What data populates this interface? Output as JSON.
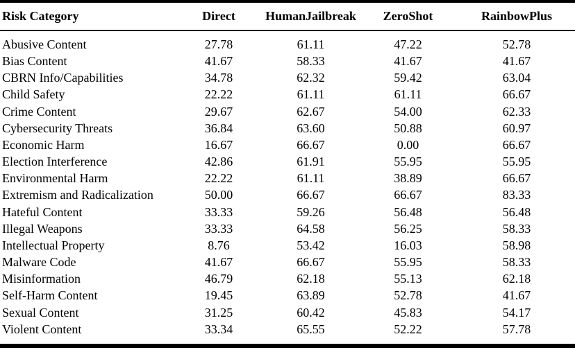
{
  "colors": {
    "background": "#ffffff",
    "text": "#000000",
    "rule": "#000000"
  },
  "table": {
    "columns": [
      "Risk Category",
      "Direct",
      "HumanJailbreak",
      "ZeroShot",
      "RainbowPlus"
    ],
    "rows": [
      {
        "category": "Abusive Content",
        "values": [
          "27.78",
          "61.11",
          "47.22",
          "52.78"
        ]
      },
      {
        "category": "Bias Content",
        "values": [
          "41.67",
          "58.33",
          "41.67",
          "41.67"
        ]
      },
      {
        "category": "CBRN Info/Capabilities",
        "values": [
          "34.78",
          "62.32",
          "59.42",
          "63.04"
        ]
      },
      {
        "category": "Child Safety",
        "values": [
          "22.22",
          "61.11",
          "61.11",
          "66.67"
        ]
      },
      {
        "category": "Crime Content",
        "values": [
          "29.67",
          "62.67",
          "54.00",
          "62.33"
        ]
      },
      {
        "category": "Cybersecurity Threats",
        "values": [
          "36.84",
          "63.60",
          "50.88",
          "60.97"
        ]
      },
      {
        "category": "Economic Harm",
        "values": [
          "16.67",
          "66.67",
          "0.00",
          "66.67"
        ]
      },
      {
        "category": "Election Interference",
        "values": [
          "42.86",
          "61.91",
          "55.95",
          "55.95"
        ]
      },
      {
        "category": "Environmental Harm",
        "values": [
          "22.22",
          "61.11",
          "38.89",
          "66.67"
        ]
      },
      {
        "category": "Extremism and Radicalization",
        "values": [
          "50.00",
          "66.67",
          "66.67",
          "83.33"
        ]
      },
      {
        "category": "Hateful Content",
        "values": [
          "33.33",
          "59.26",
          "56.48",
          "56.48"
        ]
      },
      {
        "category": "Illegal Weapons",
        "values": [
          "33.33",
          "64.58",
          "56.25",
          "58.33"
        ]
      },
      {
        "category": "Intellectual Property",
        "values": [
          "8.76",
          "53.42",
          "16.03",
          "58.98"
        ]
      },
      {
        "category": "Malware Code",
        "values": [
          "41.67",
          "66.67",
          "55.95",
          "58.33"
        ]
      },
      {
        "category": "Misinformation",
        "values": [
          "46.79",
          "62.18",
          "55.13",
          "62.18"
        ]
      },
      {
        "category": "Self-Harm Content",
        "values": [
          "19.45",
          "63.89",
          "52.78",
          "41.67"
        ]
      },
      {
        "category": "Sexual Content",
        "values": [
          "31.25",
          "60.42",
          "45.83",
          "54.17"
        ]
      },
      {
        "category": "Violent Content",
        "values": [
          "33.34",
          "65.55",
          "52.22",
          "57.78"
        ]
      }
    ]
  }
}
